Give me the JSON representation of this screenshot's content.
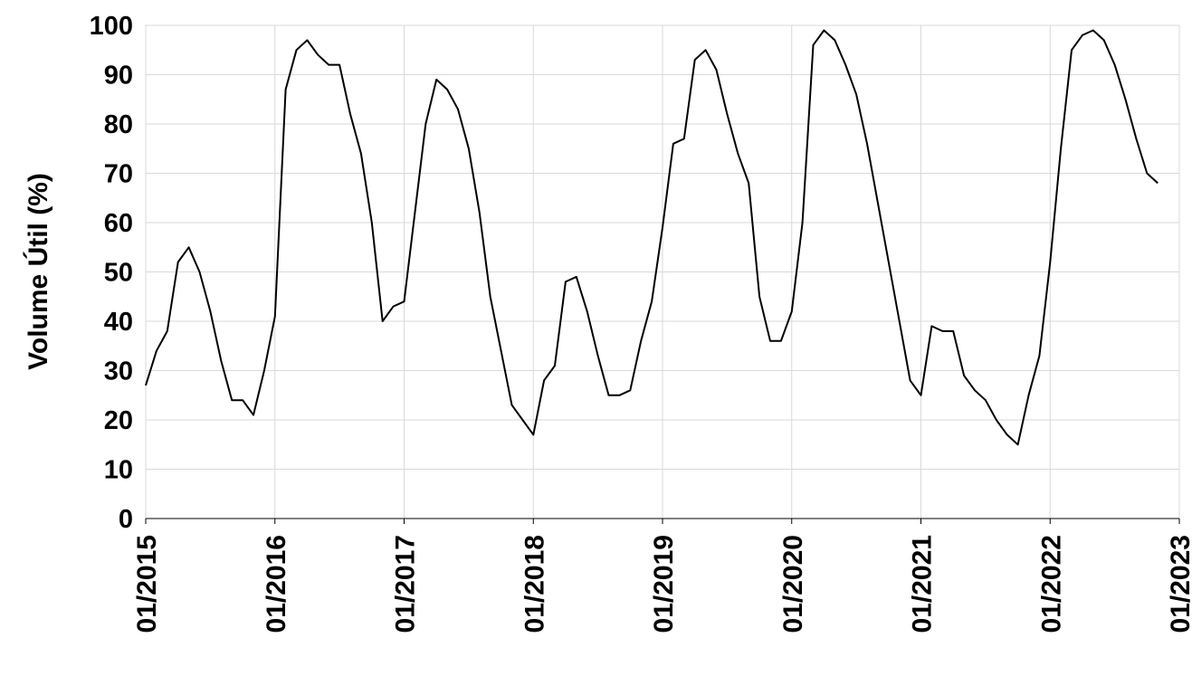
{
  "chart_data": {
    "type": "line",
    "y_label": "Volume Útil (%)",
    "x": [
      "2015-01",
      "2015-02",
      "2015-03",
      "2015-04",
      "2015-05",
      "2015-06",
      "2015-07",
      "2015-08",
      "2015-09",
      "2015-10",
      "2015-11",
      "2015-12",
      "2016-01",
      "2016-02",
      "2016-03",
      "2016-04",
      "2016-05",
      "2016-06",
      "2016-07",
      "2016-08",
      "2016-09",
      "2016-10",
      "2016-11",
      "2016-12",
      "2017-01",
      "2017-02",
      "2017-03",
      "2017-04",
      "2017-05",
      "2017-06",
      "2017-07",
      "2017-08",
      "2017-09",
      "2017-10",
      "2017-11",
      "2017-12",
      "2018-01",
      "2018-02",
      "2018-03",
      "2018-04",
      "2018-05",
      "2018-06",
      "2018-07",
      "2018-08",
      "2018-09",
      "2018-10",
      "2018-11",
      "2018-12",
      "2019-01",
      "2019-02",
      "2019-03",
      "2019-04",
      "2019-05",
      "2019-06",
      "2019-07",
      "2019-08",
      "2019-09",
      "2019-10",
      "2019-11",
      "2019-12",
      "2020-01",
      "2020-02",
      "2020-03",
      "2020-04",
      "2020-05",
      "2020-06",
      "2020-07",
      "2020-08",
      "2020-09",
      "2020-10",
      "2020-11",
      "2020-12",
      "2021-01",
      "2021-02",
      "2021-03",
      "2021-04",
      "2021-05",
      "2021-06",
      "2021-07",
      "2021-08",
      "2021-09",
      "2021-10",
      "2021-11",
      "2021-12",
      "2022-01",
      "2022-02",
      "2022-03",
      "2022-04",
      "2022-05",
      "2022-06",
      "2022-07",
      "2022-08",
      "2022-09",
      "2022-10",
      "2022-11"
    ],
    "values": [
      27,
      34,
      38,
      52,
      55,
      50,
      42,
      32,
      24,
      24,
      21,
      30,
      41,
      87,
      95,
      97,
      94,
      92,
      92,
      82,
      74,
      60,
      40,
      43,
      44,
      62,
      80,
      89,
      87,
      83,
      75,
      62,
      45,
      34,
      23,
      20,
      17,
      28,
      31,
      48,
      49,
      42,
      33,
      25,
      25,
      26,
      36,
      44,
      59,
      76,
      77,
      93,
      95,
      91,
      82,
      74,
      68,
      45,
      36,
      36,
      42,
      60,
      96,
      99,
      97,
      92,
      86,
      76,
      64,
      52,
      40,
      28,
      25,
      39,
      38,
      38,
      29,
      26,
      24,
      20,
      17,
      15,
      25,
      33,
      52,
      75,
      95,
      98,
      99,
      97,
      92,
      85,
      77,
      70,
      68
    ],
    "color": "#000000",
    "xlim": [
      "2015-01",
      "2023-01"
    ],
    "xticks": [
      {
        "value": "2015-01",
        "label": "01/2015"
      },
      {
        "value": "2016-01",
        "label": "01/2016"
      },
      {
        "value": "2017-01",
        "label": "01/2017"
      },
      {
        "value": "2018-01",
        "label": "01/2018"
      },
      {
        "value": "2019-01",
        "label": "01/2019"
      },
      {
        "value": "2020-01",
        "label": "01/2020"
      },
      {
        "value": "2021-01",
        "label": "01/2021"
      },
      {
        "value": "2022-01",
        "label": "01/2022"
      },
      {
        "value": "2023-01",
        "label": "01/2023"
      }
    ],
    "ylim": [
      0,
      100
    ],
    "yticks": [
      0,
      10,
      20,
      30,
      40,
      50,
      60,
      70,
      80,
      90,
      100
    ],
    "grid": true
  }
}
